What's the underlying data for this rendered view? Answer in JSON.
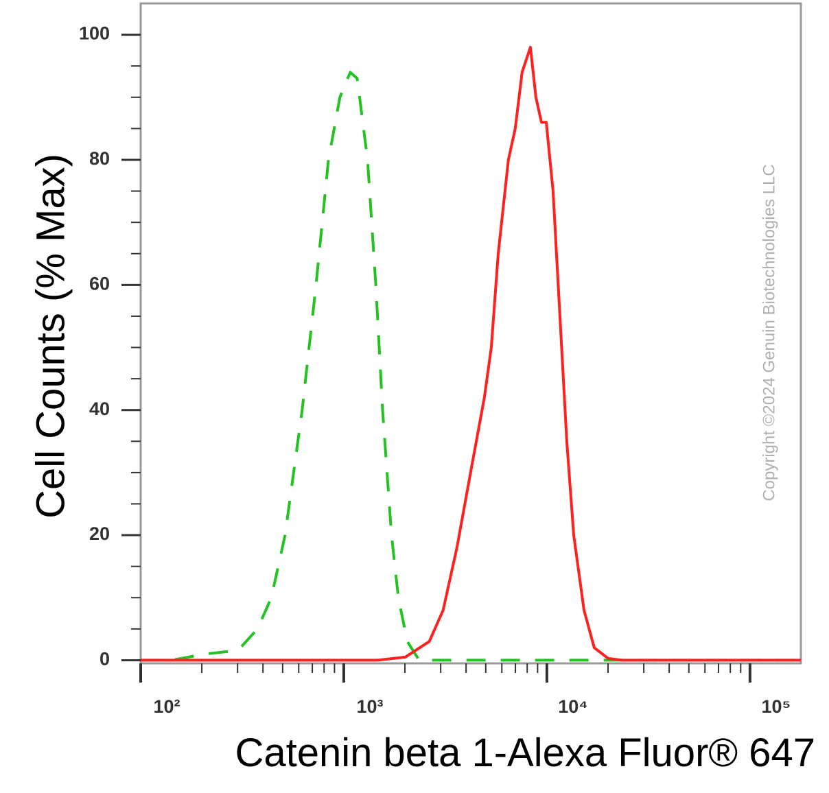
{
  "chart_data": {
    "type": "histogram-line",
    "ylabel": "Cell Counts (% Max)",
    "xlabel": "Catenin beta 1-Alexa Fluor® 647",
    "watermark": "Copyright ©2024 Genuin Biotechnologies LLC",
    "xscale": "log",
    "xlim": [
      100,
      178000
    ],
    "xticks": [
      {
        "value": 100,
        "label": "10²"
      },
      {
        "value": 1000,
        "label": "10³"
      },
      {
        "value": 10000,
        "label": "10⁴"
      },
      {
        "value": 100000,
        "label": "10⁵"
      }
    ],
    "ylim": [
      -0.5,
      105
    ],
    "yticks": [
      0,
      20,
      40,
      60,
      80,
      100
    ],
    "series": [
      {
        "color": "#22c322",
        "dash": true,
        "x": [
          100,
          142,
          172,
          209,
          286,
          310,
          376,
          440,
          514,
          624,
          730,
          840,
          957,
          1076,
          1164,
          1309,
          1437,
          1553,
          1718,
          1857,
          2055,
          2350,
          178000
        ],
        "values": [
          0,
          0,
          0.5,
          1,
          1.5,
          2,
          5,
          10,
          20,
          40,
          60,
          80,
          90,
          94,
          93,
          80,
          60,
          40,
          20,
          10,
          3,
          0,
          0
        ]
      },
      {
        "color": "#ff2020",
        "dash": false,
        "x": [
          100,
          1472,
          2009,
          2637,
          3084,
          3606,
          4210,
          4921,
          5324,
          5758,
          6460,
          6985,
          7550,
          8296,
          8830,
          9400,
          9930,
          10720,
          11590,
          12530,
          13550,
          15230,
          17100,
          20000,
          23380,
          178000
        ],
        "values": [
          0,
          0,
          0.5,
          3,
          8,
          18,
          30,
          42,
          50,
          65,
          80,
          85,
          94,
          98,
          90,
          86,
          86,
          75,
          55,
          35,
          20,
          8,
          2,
          0.3,
          0,
          0
        ]
      }
    ]
  }
}
